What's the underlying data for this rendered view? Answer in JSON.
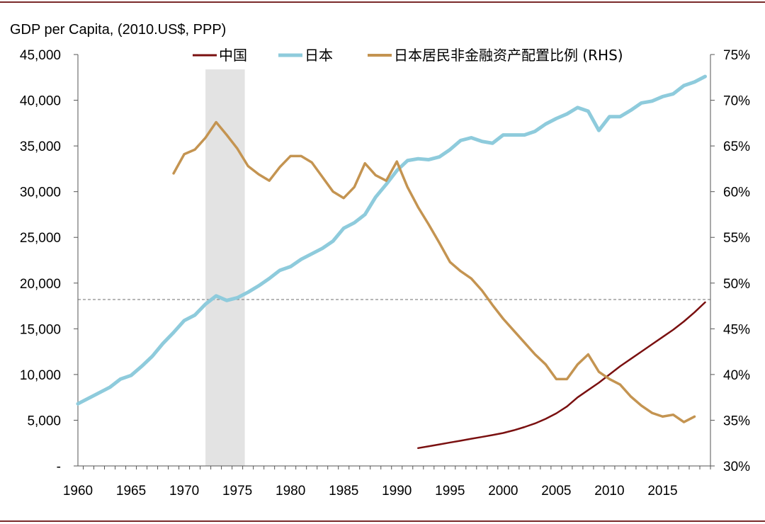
{
  "chart_data": {
    "type": "line",
    "title": "GDP per Capita,  (2010.US$, PPP)",
    "colors": {
      "china": "#7a1010",
      "japan": "#8ecbdc",
      "ratio": "#c49451",
      "shade": "#e3e3e3",
      "frame": "#7a2a2a",
      "refline": "#8c8c8c"
    },
    "x_ticks": [
      "1960",
      "1965",
      "1970",
      "1975",
      "1980",
      "1985",
      "1990",
      "1995",
      "2000",
      "2005",
      "2010",
      "2015"
    ],
    "x_range": [
      1960,
      2019.5
    ],
    "y_left": {
      "range": [
        0,
        45000
      ],
      "ticks": [
        {
          "value": 0,
          "label": "-"
        },
        {
          "value": 5000,
          "label": "5,000"
        },
        {
          "value": 10000,
          "label": "10,000"
        },
        {
          "value": 15000,
          "label": "15,000"
        },
        {
          "value": 20000,
          "label": "20,000"
        },
        {
          "value": 25000,
          "label": "25,000"
        },
        {
          "value": 30000,
          "label": "30,000"
        },
        {
          "value": 35000,
          "label": "35,000"
        },
        {
          "value": 40000,
          "label": "40,000"
        },
        {
          "value": 45000,
          "label": "45,000"
        }
      ]
    },
    "y_right": {
      "range": [
        30,
        75
      ],
      "ticks": [
        {
          "value": 30,
          "label": "30%"
        },
        {
          "value": 35,
          "label": "35%"
        },
        {
          "value": 40,
          "label": "40%"
        },
        {
          "value": 45,
          "label": "45%"
        },
        {
          "value": 50,
          "label": "50%"
        },
        {
          "value": 55,
          "label": "55%"
        },
        {
          "value": 60,
          "label": "60%"
        },
        {
          "value": 65,
          "label": "65%"
        },
        {
          "value": 70,
          "label": "70%"
        },
        {
          "value": 75,
          "label": "75%"
        }
      ]
    },
    "shaded_period": [
      1972,
      1975.7
    ],
    "reference_line": {
      "axis": "left",
      "value": 18200
    },
    "series": [
      {
        "key": "china",
        "name": "中国",
        "axis": "left",
        "x": [
          1992,
          1993,
          1994,
          1995,
          1996,
          1997,
          1998,
          1999,
          2000,
          2001,
          2002,
          2003,
          2004,
          2005,
          2006,
          2007,
          2008,
          2009,
          2010,
          2011,
          2012,
          2013,
          2014,
          2015,
          2016,
          2017,
          2018,
          2019
        ],
        "values": [
          1950,
          2150,
          2350,
          2560,
          2760,
          2970,
          3170,
          3380,
          3600,
          3900,
          4250,
          4650,
          5150,
          5750,
          6500,
          7500,
          8300,
          9100,
          10000,
          10900,
          11700,
          12500,
          13300,
          14100,
          14900,
          15800,
          16800,
          17900
        ]
      },
      {
        "key": "japan",
        "name": "日本",
        "axis": "left",
        "x": [
          1960,
          1961,
          1962,
          1963,
          1964,
          1965,
          1966,
          1967,
          1968,
          1969,
          1970,
          1971,
          1972,
          1973,
          1974,
          1975,
          1976,
          1977,
          1978,
          1979,
          1980,
          1981,
          1982,
          1983,
          1984,
          1985,
          1986,
          1987,
          1988,
          1989,
          1990,
          1991,
          1992,
          1993,
          1994,
          1995,
          1996,
          1997,
          1998,
          1999,
          2000,
          2001,
          2002,
          2003,
          2004,
          2005,
          2006,
          2007,
          2008,
          2009,
          2010,
          2011,
          2012,
          2013,
          2014,
          2015,
          2016,
          2017,
          2018,
          2019
        ],
        "values": [
          6800,
          7400,
          8000,
          8600,
          9500,
          9900,
          10900,
          12000,
          13400,
          14600,
          15900,
          16500,
          17700,
          18600,
          18100,
          18400,
          19000,
          19700,
          20500,
          21400,
          21800,
          22600,
          23200,
          23800,
          24600,
          26000,
          26600,
          27500,
          29400,
          30800,
          32300,
          33400,
          33600,
          33500,
          33800,
          34600,
          35600,
          35900,
          35500,
          35300,
          36200,
          36200,
          36200,
          36600,
          37400,
          38000,
          38500,
          39200,
          38800,
          36700,
          38200,
          38200,
          38900,
          39700,
          39900,
          40400,
          40700,
          41600,
          42000,
          42600
        ]
      },
      {
        "key": "ratio",
        "name": "日本居民非金融资产配置比例 (RHS)",
        "axis": "right",
        "x": [
          1969,
          1970,
          1971,
          1972,
          1973,
          1974,
          1975,
          1976,
          1977,
          1978,
          1979,
          1980,
          1981,
          1982,
          1983,
          1984,
          1985,
          1986,
          1987,
          1988,
          1989,
          1990,
          1991,
          1992,
          1993,
          1994,
          1995,
          1996,
          1997,
          1998,
          1999,
          2000,
          2001,
          2002,
          2003,
          2004,
          2005,
          2006,
          2007,
          2008,
          2009,
          2010,
          2011,
          2012,
          2013,
          2014,
          2015,
          2016,
          2017,
          2018
        ],
        "values": [
          62,
          64.1,
          64.6,
          65.9,
          67.6,
          66.2,
          64.7,
          62.8,
          61.9,
          61.2,
          62.7,
          63.9,
          63.9,
          63.2,
          61.6,
          60,
          59.3,
          60.5,
          63.1,
          61.8,
          61.2,
          63.3,
          60.5,
          58.3,
          56.4,
          54.4,
          52.3,
          51.3,
          50.5,
          49.2,
          47.6,
          46.1,
          44.8,
          43.5,
          42.2,
          41.1,
          39.5,
          39.5,
          41.1,
          42.2,
          40.3,
          39.5,
          38.9,
          37.6,
          36.6,
          35.8,
          35.4,
          35.6,
          34.8,
          35.4
        ]
      }
    ],
    "legend": [
      {
        "key": "china",
        "label": "中国"
      },
      {
        "key": "japan",
        "label": "日本"
      },
      {
        "key": "ratio",
        "label": "日本居民非金融资产配置比例 (RHS)"
      }
    ]
  }
}
